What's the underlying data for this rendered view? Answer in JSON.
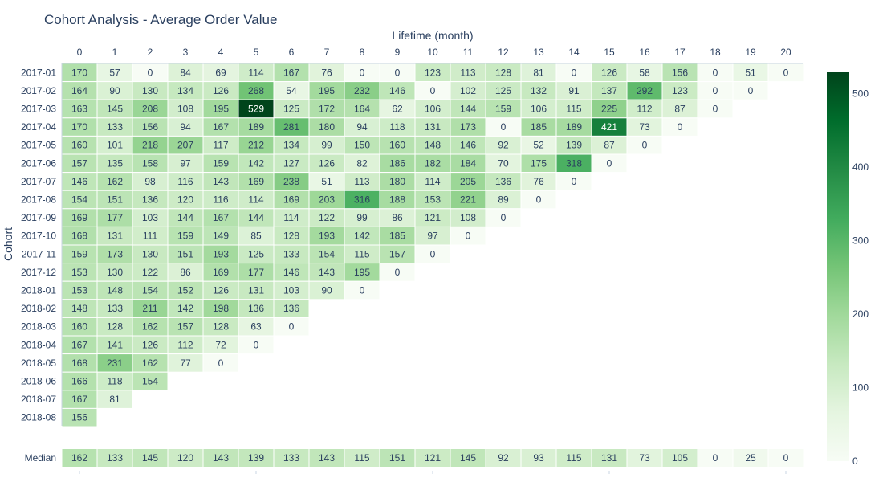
{
  "chart_data": {
    "type": "heatmap",
    "title": "Cohort Analysis - Average Order Value",
    "xlabel": "Lifetime (month)",
    "ylabel": "Cohort",
    "x": [
      0,
      1,
      2,
      3,
      4,
      5,
      6,
      7,
      8,
      9,
      10,
      11,
      12,
      13,
      14,
      15,
      16,
      17,
      18,
      19,
      20
    ],
    "cohorts": [
      "2017-01",
      "2017-02",
      "2017-03",
      "2017-04",
      "2017-05",
      "2017-06",
      "2017-07",
      "2017-08",
      "2017-09",
      "2017-10",
      "2017-11",
      "2017-12",
      "2018-01",
      "2018-02",
      "2018-03",
      "2018-04",
      "2018-05",
      "2018-06",
      "2018-07",
      "2018-08"
    ],
    "values": [
      [
        170,
        57,
        0,
        84,
        69,
        114,
        167,
        76,
        0,
        0,
        123,
        113,
        128,
        81,
        0,
        126,
        58,
        156,
        0,
        51,
        0
      ],
      [
        164,
        90,
        130,
        134,
        126,
        268,
        54,
        195,
        232,
        146,
        0,
        102,
        125,
        132,
        91,
        137,
        292,
        123,
        0,
        0
      ],
      [
        163,
        145,
        208,
        108,
        195,
        529,
        125,
        172,
        164,
        62,
        106,
        144,
        159,
        106,
        115,
        225,
        112,
        87,
        0
      ],
      [
        170,
        133,
        156,
        94,
        167,
        189,
        281,
        180,
        94,
        118,
        131,
        173,
        0,
        185,
        189,
        421,
        73,
        0
      ],
      [
        160,
        101,
        218,
        207,
        117,
        212,
        134,
        99,
        150,
        160,
        148,
        146,
        92,
        52,
        139,
        87,
        0
      ],
      [
        157,
        135,
        158,
        97,
        159,
        142,
        127,
        126,
        82,
        186,
        182,
        184,
        70,
        175,
        318,
        0
      ],
      [
        146,
        162,
        98,
        116,
        143,
        169,
        238,
        51,
        113,
        180,
        114,
        205,
        136,
        76,
        0
      ],
      [
        154,
        151,
        136,
        120,
        116,
        114,
        169,
        203,
        316,
        188,
        153,
        221,
        89,
        0
      ],
      [
        169,
        177,
        103,
        144,
        167,
        144,
        114,
        122,
        99,
        86,
        121,
        108,
        0
      ],
      [
        168,
        131,
        111,
        159,
        149,
        85,
        128,
        193,
        142,
        185,
        97,
        0
      ],
      [
        159,
        173,
        130,
        151,
        193,
        125,
        133,
        154,
        115,
        157,
        0
      ],
      [
        153,
        130,
        122,
        86,
        169,
        177,
        146,
        143,
        195,
        0
      ],
      [
        153,
        148,
        154,
        152,
        126,
        131,
        103,
        90,
        0
      ],
      [
        148,
        133,
        211,
        142,
        198,
        136,
        136
      ],
      [
        160,
        128,
        162,
        157,
        128,
        63,
        0
      ],
      [
        167,
        141,
        126,
        112,
        72,
        0
      ],
      [
        168,
        231,
        162,
        77,
        0
      ],
      [
        166,
        118,
        154
      ],
      [
        167,
        81
      ],
      [
        156
      ]
    ],
    "median_label": "Median",
    "median": [
      162,
      133,
      145,
      120,
      143,
      139,
      133,
      143,
      115,
      151,
      121,
      145,
      92,
      93,
      115,
      131,
      73,
      105,
      0,
      25,
      0
    ],
    "colorscale": "Greens",
    "zmin": 0,
    "zmax": 529,
    "colorbar_ticks": [
      0,
      100,
      200,
      300,
      400,
      500
    ],
    "colors": {
      "low": "#f7fcf5",
      "high": "#00441b",
      "text_dark": "#2a3f5f",
      "text_light": "#ffffff",
      "grid": "#ffffff"
    }
  }
}
